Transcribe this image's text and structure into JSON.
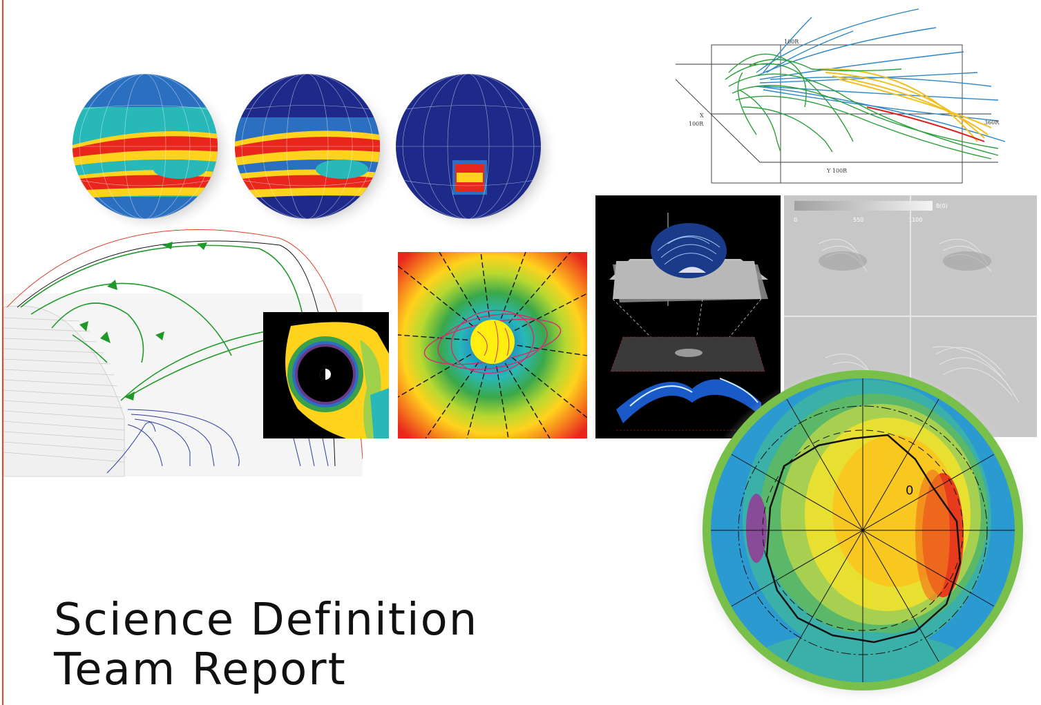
{
  "title": {
    "line1": "Science Definition",
    "line2": "Team Report"
  },
  "colors": {
    "accent_rule": "#e8432c",
    "field_green": "#1f9a2a",
    "field_blue": "#2b3aa0",
    "sphere_navy": "#1d2a8a"
  },
  "fieldline_plot": {
    "labels": {
      "z": "100R",
      "x_axis": "X",
      "x_dist": "100R",
      "y": "Y  100R",
      "right": "360R"
    }
  },
  "magnetogram_panels": {
    "colorbar_label": "B(0)",
    "ticks": [
      "0",
      "550",
      "1100"
    ]
  },
  "polar_plot": {
    "contour_label": "0"
  }
}
